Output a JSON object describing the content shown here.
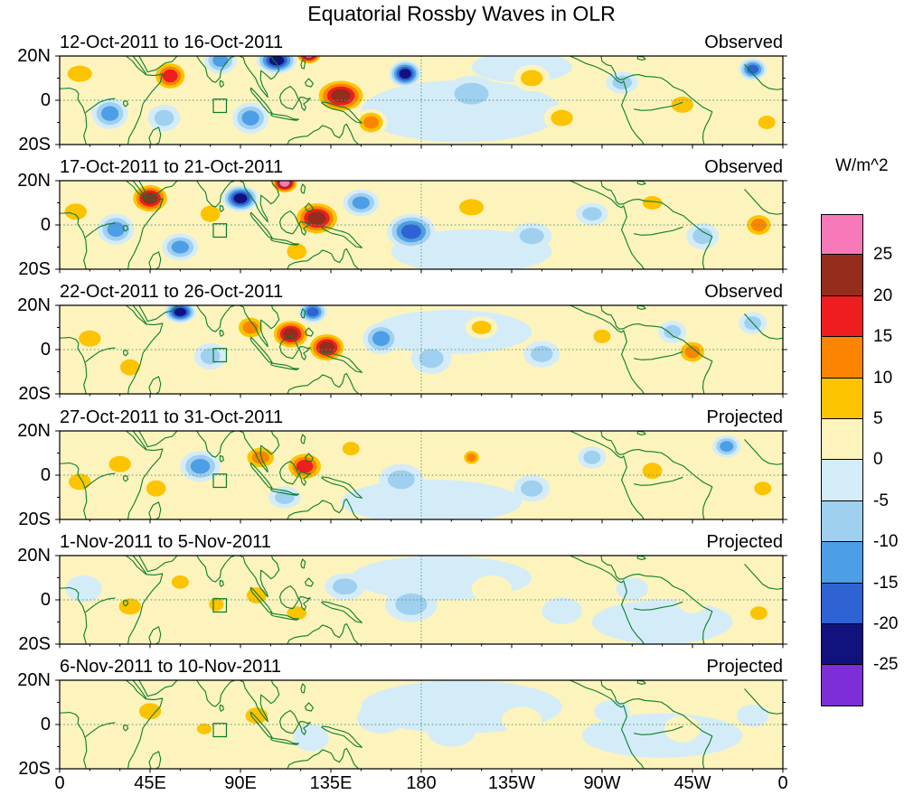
{
  "title": "Equatorial Rossby Waves in OLR",
  "colorbar": {
    "units_label": "W/m^2",
    "tick_labels": [
      "25",
      "20",
      "15",
      "10",
      "5",
      "0",
      "-5",
      "-10",
      "-15",
      "-20",
      "-25"
    ],
    "colors_top_to_bottom": [
      "#F879B9",
      "#942D1C",
      "#EE1D1F",
      "#FB8500",
      "#FCC400",
      "#FCF4BC",
      "#D4ECF8",
      "#9FD0EF",
      "#4C9EE6",
      "#2F62D2",
      "#12127E",
      "#7D2ED6"
    ]
  },
  "map_colors": {
    "coastline": "#0a7d2c",
    "gridline": "#5d9480",
    "axis": "#000000"
  },
  "x_axis": {
    "tick_labels": [
      "0",
      "45E",
      "90E",
      "135E",
      "180",
      "135W",
      "90W",
      "45W",
      "0"
    ]
  },
  "y_axis": {
    "tick_labels": [
      "20N",
      "0",
      "20S"
    ]
  },
  "chart_data": {
    "type": "heatmap",
    "subtype": "filled-contour-longitude-latitude-map-sequence",
    "units": "W/m^2",
    "lon_range": [
      0,
      360
    ],
    "lat_range": [
      -20,
      20
    ],
    "contour_levels": [
      -25,
      -20,
      -15,
      -10,
      -5,
      0,
      5,
      10,
      15,
      20,
      25
    ],
    "region_box": {
      "lon_min": 76.5,
      "lon_max": 83,
      "lat_min": -5.5,
      "lat_max": 0.5
    },
    "anomaly_format": "[lon_deg_east, lat_deg, peak_w_per_m2, extent_lon_deg, extent_lat_deg]",
    "panels": [
      {
        "date_range": "12-Oct-2011 to 16-Oct-2011",
        "status": "Observed",
        "anomalies": [
          [
            200,
            -5,
            -4,
            50,
            14
          ],
          [
            230,
            15,
            -4,
            25,
            7
          ],
          [
            265,
            -12,
            3,
            30,
            8
          ],
          [
            10,
            12,
            8,
            10,
            6
          ],
          [
            25,
            -6,
            -12,
            9,
            7
          ],
          [
            55,
            11,
            19,
            9,
            7
          ],
          [
            52,
            -8,
            -9,
            8,
            6
          ],
          [
            80,
            18,
            -13,
            8,
            6
          ],
          [
            95,
            -8,
            -13,
            9,
            7
          ],
          [
            108,
            18,
            -24,
            10,
            6
          ],
          [
            124,
            21,
            27,
            7,
            5
          ],
          [
            140,
            2,
            23,
            13,
            8
          ],
          [
            155,
            -10,
            13,
            8,
            6
          ],
          [
            172,
            12,
            -22,
            8,
            6
          ],
          [
            205,
            3,
            -8,
            14,
            8
          ],
          [
            235,
            10,
            7,
            9,
            6
          ],
          [
            250,
            -8,
            7,
            9,
            6
          ],
          [
            280,
            8,
            -7,
            8,
            5
          ],
          [
            310,
            -2,
            9,
            9,
            6
          ],
          [
            345,
            14,
            -16,
            7,
            5
          ],
          [
            352,
            -10,
            8,
            7,
            5
          ]
        ]
      },
      {
        "date_range": "17-Oct-2011 to 21-Oct-2011",
        "status": "Observed",
        "anomalies": [
          [
            205,
            -12,
            -4,
            40,
            10
          ],
          [
            300,
            -15,
            3,
            30,
            8
          ],
          [
            8,
            6,
            9,
            9,
            6
          ],
          [
            28,
            -2,
            -14,
            9,
            7
          ],
          [
            45,
            12,
            21,
            10,
            7
          ],
          [
            60,
            -10,
            -14,
            9,
            6
          ],
          [
            75,
            5,
            9,
            8,
            6
          ],
          [
            90,
            12,
            -21,
            9,
            6
          ],
          [
            112,
            19,
            26,
            7,
            5
          ],
          [
            128,
            3,
            23,
            12,
            8
          ],
          [
            118,
            -12,
            10,
            8,
            6
          ],
          [
            150,
            10,
            -13,
            9,
            6
          ],
          [
            175,
            -3,
            -17,
            12,
            8
          ],
          [
            205,
            8,
            9,
            10,
            6
          ],
          [
            235,
            -5,
            -6,
            10,
            6
          ],
          [
            265,
            5,
            -8,
            8,
            5
          ],
          [
            295,
            10,
            9,
            8,
            5
          ],
          [
            320,
            -5,
            -7,
            8,
            6
          ],
          [
            348,
            0,
            11,
            8,
            6
          ]
        ]
      },
      {
        "date_range": "22-Oct-2011 to 26-Oct-2011",
        "status": "Observed",
        "anomalies": [
          [
            195,
            8,
            -4,
            40,
            10
          ],
          [
            290,
            -12,
            3,
            35,
            9
          ],
          [
            15,
            5,
            7,
            9,
            6
          ],
          [
            35,
            -8,
            9,
            8,
            6
          ],
          [
            60,
            17,
            -24,
            8,
            5
          ],
          [
            75,
            -3,
            -9,
            8,
            6
          ],
          [
            95,
            10,
            14,
            8,
            6
          ],
          [
            115,
            7,
            22,
            10,
            7
          ],
          [
            133,
            1,
            23,
            10,
            7
          ],
          [
            126,
            17,
            -19,
            7,
            5
          ],
          [
            160,
            5,
            -13,
            9,
            7
          ],
          [
            185,
            -4,
            -9,
            10,
            7
          ],
          [
            210,
            10,
            7,
            8,
            5
          ],
          [
            240,
            -2,
            -6,
            9,
            6
          ],
          [
            270,
            6,
            7,
            7,
            5
          ],
          [
            305,
            8,
            -7,
            7,
            5
          ],
          [
            315,
            -1,
            14,
            8,
            6
          ],
          [
            345,
            12,
            -7,
            7,
            5
          ]
        ]
      },
      {
        "date_range": "27-Oct-2011 to 31-Oct-2011",
        "status": "Projected",
        "anomalies": [
          [
            185,
            -12,
            -4,
            45,
            10
          ],
          [
            300,
            15,
            3,
            30,
            8
          ],
          [
            10,
            -3,
            6,
            9,
            6
          ],
          [
            30,
            5,
            8,
            9,
            6
          ],
          [
            48,
            -6,
            9,
            8,
            6
          ],
          [
            70,
            4,
            -13,
            10,
            7
          ],
          [
            100,
            8,
            14,
            9,
            6
          ],
          [
            122,
            4,
            16,
            10,
            7
          ],
          [
            112,
            -10,
            -8,
            8,
            5
          ],
          [
            145,
            12,
            7,
            7,
            5
          ],
          [
            170,
            -2,
            -7,
            11,
            7
          ],
          [
            205,
            8,
            11,
            5,
            4
          ],
          [
            235,
            -6,
            -6,
            9,
            6
          ],
          [
            265,
            8,
            -6,
            7,
            5
          ],
          [
            295,
            2,
            6,
            8,
            6
          ],
          [
            332,
            13,
            -13,
            7,
            5
          ],
          [
            350,
            -6,
            6,
            7,
            5
          ]
        ]
      },
      {
        "date_range": "1-Nov-2011 to 5-Nov-2011",
        "status": "Projected",
        "anomalies": [
          [
            190,
            10,
            -4,
            45,
            10
          ],
          [
            300,
            -10,
            -3,
            35,
            10
          ],
          [
            60,
            -12,
            3,
            30,
            8
          ],
          [
            12,
            5,
            -5,
            9,
            6
          ],
          [
            35,
            -3,
            7,
            9,
            6
          ],
          [
            60,
            8,
            9,
            7,
            5
          ],
          [
            78,
            -2,
            8,
            6,
            5
          ],
          [
            98,
            2,
            10,
            8,
            6
          ],
          [
            118,
            -6,
            8,
            8,
            5
          ],
          [
            142,
            6,
            -6,
            10,
            6
          ],
          [
            175,
            -2,
            -6,
            13,
            8
          ],
          [
            215,
            5,
            5,
            10,
            6
          ],
          [
            250,
            -5,
            -4,
            10,
            6
          ],
          [
            285,
            5,
            -5,
            8,
            5
          ],
          [
            315,
            0,
            5,
            8,
            6
          ],
          [
            348,
            -6,
            6,
            7,
            5
          ]
        ]
      },
      {
        "date_range": "6-Nov-2011 to 10-Nov-2011",
        "status": "Projected",
        "anomalies": [
          [
            200,
            8,
            -4,
            50,
            12
          ],
          [
            300,
            -5,
            -3,
            40,
            10
          ],
          [
            90,
            -14,
            3,
            35,
            8
          ],
          [
            15,
            0,
            5,
            10,
            6
          ],
          [
            45,
            6,
            7,
            9,
            6
          ],
          [
            72,
            -2,
            8,
            6,
            4
          ],
          [
            98,
            4,
            6,
            9,
            6
          ],
          [
            125,
            -6,
            -5,
            9,
            6
          ],
          [
            160,
            3,
            -5,
            12,
            7
          ],
          [
            195,
            -3,
            -4,
            12,
            7
          ],
          [
            230,
            2,
            4,
            10,
            6
          ],
          [
            275,
            6,
            -4,
            9,
            5
          ],
          [
            310,
            -2,
            4,
            9,
            6
          ],
          [
            345,
            4,
            -4,
            8,
            5
          ]
        ]
      }
    ]
  }
}
